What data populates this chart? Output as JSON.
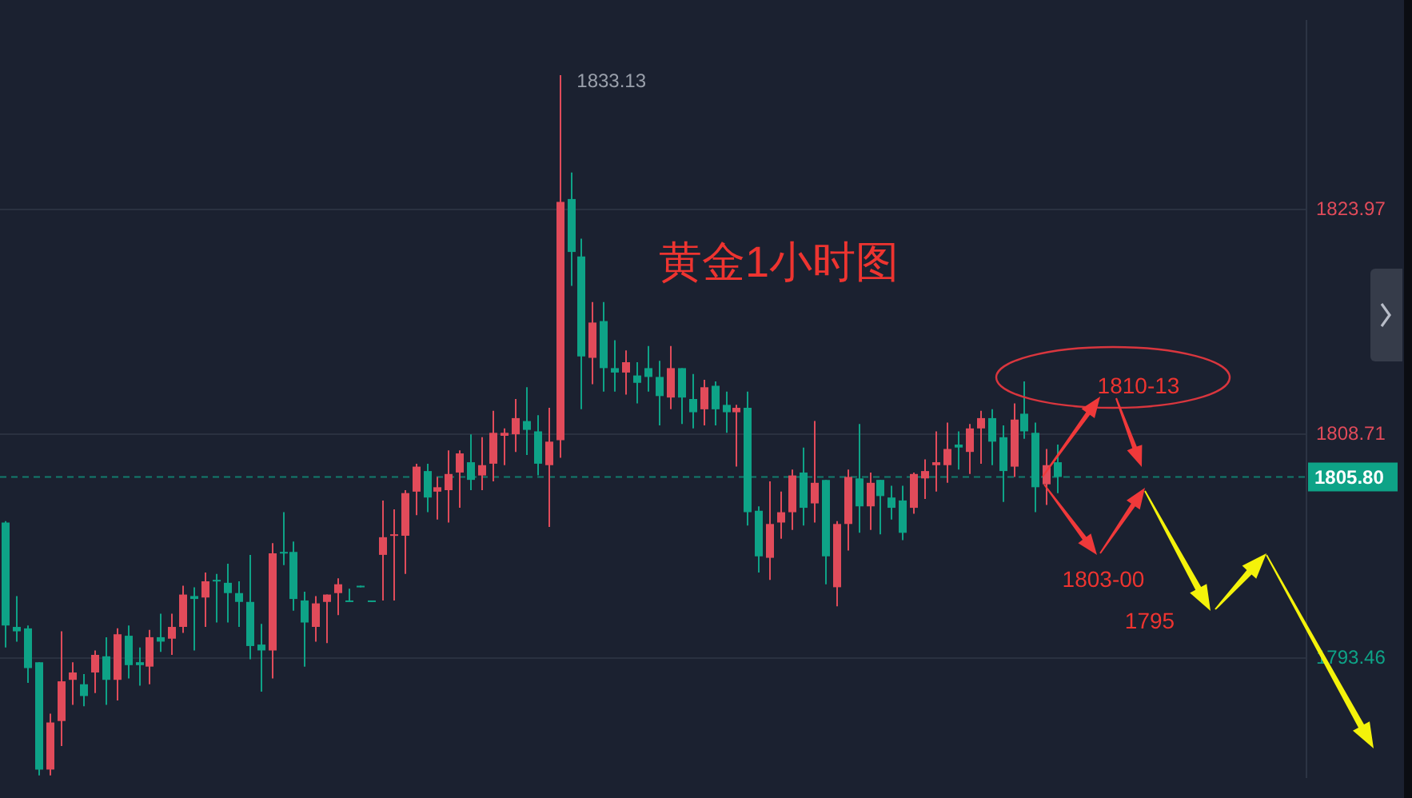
{
  "chart_data": {
    "type": "candlestick",
    "title": "黄金1小时图",
    "categories": [
      null,
      null,
      null,
      null,
      null,
      null,
      null,
      null,
      null,
      null,
      null,
      null,
      null,
      null,
      null,
      null,
      null,
      null,
      null,
      null,
      null,
      null,
      null,
      null,
      null,
      null,
      null,
      null,
      null,
      null,
      null,
      null,
      null,
      null,
      null,
      null,
      null,
      null,
      null,
      null,
      null,
      null,
      null,
      null,
      null,
      null,
      null,
      null,
      null,
      null,
      null,
      null,
      null,
      null,
      null,
      null,
      null,
      null,
      null,
      null,
      null,
      null,
      null,
      null,
      null,
      null,
      null,
      null,
      null,
      null,
      null,
      null,
      null,
      null,
      null,
      null,
      null,
      null,
      null,
      null,
      null,
      null,
      null,
      null,
      null,
      null,
      null,
      null,
      null,
      null,
      null,
      null,
      null,
      null,
      null,
      null,
      null,
      null,
      null,
      null,
      null,
      null,
      null,
      null,
      null,
      null,
      null,
      null,
      null,
      null,
      null,
      null,
      null,
      null,
      null,
      null,
      null,
      null
    ],
    "ohlc": [
      [
        1802.7,
        1802.8,
        1794.2,
        1795.7
      ],
      [
        1795.6,
        1797.7,
        1794.6,
        1795.3
      ],
      [
        1795.5,
        1795.7,
        1791.8,
        1792.8
      ],
      [
        1793.2,
        1793.2,
        1785.5,
        1785.9
      ],
      [
        1785.9,
        1789.7,
        1785.5,
        1789.1
      ],
      [
        1789.2,
        1795.3,
        1787.5,
        1791.9
      ],
      [
        1792.0,
        1793.2,
        1790.3,
        1792.5
      ],
      [
        1791.7,
        1792.4,
        1790.2,
        1790.9
      ],
      [
        1792.5,
        1794.0,
        1791.1,
        1793.7
      ],
      [
        1793.6,
        1794.9,
        1790.3,
        1792.0
      ],
      [
        1792.0,
        1795.5,
        1790.6,
        1795.1
      ],
      [
        1795.0,
        1795.7,
        1792.1,
        1793.0
      ],
      [
        1793.2,
        1794.2,
        1791.6,
        1793.0
      ],
      [
        1792.9,
        1795.4,
        1791.7,
        1794.9
      ],
      [
        1794.9,
        1796.5,
        1793.9,
        1794.6
      ],
      [
        1794.8,
        1796.5,
        1793.7,
        1795.6
      ],
      [
        1795.6,
        1798.4,
        1795.2,
        1797.8
      ],
      [
        1797.7,
        1798.3,
        1794.0,
        1797.5
      ],
      [
        1797.6,
        1799.3,
        1795.6,
        1798.7
      ],
      [
        1798.8,
        1799.2,
        1795.9,
        1798.7
      ],
      [
        1798.6,
        1799.9,
        1795.9,
        1797.9
      ],
      [
        1797.9,
        1798.7,
        1795.6,
        1797.3
      ],
      [
        1797.3,
        1800.5,
        1793.4,
        1794.3
      ],
      [
        1794.4,
        1795.8,
        1791.2,
        1794.0
      ],
      [
        1794.0,
        1801.3,
        1792.1,
        1800.6
      ],
      [
        1800.7,
        1803.4,
        1799.8,
        1800.6
      ],
      [
        1800.7,
        1801.4,
        1796.7,
        1797.5
      ],
      [
        1797.4,
        1798.0,
        1792.9,
        1795.9
      ],
      [
        1795.6,
        1797.7,
        1794.6,
        1797.2
      ],
      [
        1797.3,
        1797.8,
        1794.5,
        1797.8
      ],
      [
        1797.9,
        1798.9,
        1796.4,
        1798.5
      ],
      [
        1797.4,
        1798.2,
        1797.3,
        1797.3
      ],
      [
        1798.4,
        1798.4,
        1798.3,
        1798.3
      ],
      [
        1797.4,
        1797.4,
        1797.3,
        1797.3
      ],
      [
        1800.5,
        1804.2,
        1797.4,
        1801.7
      ],
      [
        1801.8,
        1803.6,
        1797.4,
        1801.9
      ],
      [
        1801.8,
        1804.9,
        1799.2,
        1804.7
      ],
      [
        1804.8,
        1806.7,
        1803.2,
        1806.5
      ],
      [
        1806.2,
        1806.7,
        1803.4,
        1804.4
      ],
      [
        1804.8,
        1805.8,
        1802.9,
        1805.1
      ],
      [
        1804.9,
        1807.6,
        1802.7,
        1806.0
      ],
      [
        1806.1,
        1807.6,
        1803.7,
        1807.4
      ],
      [
        1806.8,
        1808.7,
        1804.9,
        1805.6
      ],
      [
        1805.9,
        1808.5,
        1804.9,
        1806.6
      ],
      [
        1806.7,
        1810.3,
        1805.5,
        1808.8
      ],
      [
        1808.6,
        1809.1,
        1806.6,
        1808.8
      ],
      [
        1808.7,
        1811.1,
        1807.5,
        1809.8
      ],
      [
        1809.6,
        1811.9,
        1807.3,
        1809.0
      ],
      [
        1808.9,
        1810.0,
        1805.9,
        1806.7
      ],
      [
        1806.6,
        1810.5,
        1802.4,
        1808.2
      ],
      [
        1808.3,
        1833.13,
        1807.1,
        1824.5
      ],
      [
        1824.7,
        1826.5,
        1818.8,
        1821.1
      ],
      [
        1820.8,
        1822.0,
        1810.4,
        1814.0
      ],
      [
        1813.9,
        1817.7,
        1812.1,
        1816.3
      ],
      [
        1816.4,
        1817.7,
        1811.6,
        1813.2
      ],
      [
        1813.2,
        1815.1,
        1811.6,
        1812.9
      ],
      [
        1812.9,
        1814.4,
        1811.4,
        1813.6
      ],
      [
        1812.7,
        1813.6,
        1810.8,
        1812.2
      ],
      [
        1813.2,
        1814.7,
        1811.6,
        1812.6
      ],
      [
        1812.6,
        1813.7,
        1809.3,
        1811.3
      ],
      [
        1811.2,
        1814.7,
        1810.4,
        1813.2
      ],
      [
        1813.2,
        1813.2,
        1809.4,
        1811.2
      ],
      [
        1811.1,
        1812.8,
        1809.1,
        1810.2
      ],
      [
        1810.4,
        1812.4,
        1809.3,
        1811.9
      ],
      [
        1812.0,
        1812.3,
        1809.3,
        1810.4
      ],
      [
        1810.7,
        1811.6,
        1808.8,
        1810.2
      ],
      [
        1810.2,
        1810.7,
        1806.5,
        1810.5
      ],
      [
        1810.5,
        1811.6,
        1802.5,
        1803.4
      ],
      [
        1803.5,
        1803.8,
        1799.3,
        1800.4
      ],
      [
        1800.3,
        1805.5,
        1798.8,
        1802.6
      ],
      [
        1802.7,
        1804.8,
        1801.6,
        1803.4
      ],
      [
        1803.4,
        1806.3,
        1802.2,
        1805.9
      ],
      [
        1806.1,
        1807.8,
        1802.5,
        1803.7
      ],
      [
        1804.0,
        1809.6,
        1802.7,
        1805.4
      ],
      [
        1805.6,
        1805.6,
        1798.5,
        1800.4
      ],
      [
        1798.3,
        1802.8,
        1797.0,
        1802.6
      ],
      [
        1802.6,
        1806.3,
        1800.8,
        1805.8
      ],
      [
        1805.7,
        1809.4,
        1802.0,
        1803.8
      ],
      [
        1803.8,
        1806.1,
        1802.2,
        1805.4
      ],
      [
        1805.6,
        1805.6,
        1801.9,
        1804.5
      ],
      [
        1804.4,
        1805.2,
        1802.9,
        1803.7
      ],
      [
        1804.2,
        1805.2,
        1801.5,
        1802.0
      ],
      [
        1803.7,
        1806.1,
        1803.3,
        1806.0
      ],
      [
        1805.7,
        1807.0,
        1804.3,
        1806.2
      ],
      [
        1806.6,
        1808.9,
        1804.8,
        1806.8
      ],
      [
        1806.6,
        1809.5,
        1805.4,
        1807.7
      ],
      [
        1808.0,
        1808.9,
        1806.3,
        1807.8
      ],
      [
        1807.5,
        1809.4,
        1806.0,
        1809.1
      ],
      [
        1809.1,
        1810.3,
        1806.7,
        1809.8
      ],
      [
        1809.8,
        1810.4,
        1806.6,
        1808.2
      ],
      [
        1808.5,
        1809.3,
        1804.1,
        1806.2
      ],
      [
        1806.5,
        1810.8,
        1805.8,
        1809.7
      ],
      [
        1810.1,
        1812.3,
        1808.4,
        1808.9
      ],
      [
        1808.8,
        1809.5,
        1803.4,
        1805.1
      ],
      [
        1805.3,
        1807.7,
        1803.9,
        1806.6
      ],
      [
        1806.8,
        1808.0,
        1804.7,
        1805.8
      ],
      null,
      null,
      null,
      null,
      null,
      null,
      null,
      null,
      null,
      null,
      null,
      null,
      null,
      null,
      null,
      null,
      null,
      null,
      null,
      null,
      null,
      null
    ],
    "colors": [
      "#0ea387",
      "#0ea387",
      "#0ea387",
      "#0ea387",
      "#e14b5a",
      "#e14b5a",
      "#e14b5a",
      "#0ea387",
      "#e14b5a",
      "#0ea387",
      "#e14b5a",
      "#0ea387",
      "#0ea387",
      "#e14b5a",
      "#0ea387",
      "#e14b5a",
      "#e14b5a",
      "#0ea387",
      "#e14b5a",
      "#0ea387",
      "#0ea387",
      "#0ea387",
      "#0ea387",
      "#0ea387",
      "#e14b5a",
      "#0ea387",
      "#0ea387",
      "#0ea387",
      "#e14b5a",
      "#e14b5a",
      "#e14b5a",
      "#0ea387",
      "#0ea387",
      "#0ea387",
      "#e14b5a",
      "#e14b5a",
      "#e14b5a",
      "#e14b5a",
      "#0ea387",
      "#e14b5a",
      "#e14b5a",
      "#e14b5a",
      "#0ea387",
      "#e14b5a",
      "#e14b5a",
      "#e14b5a",
      "#e14b5a",
      "#0ea387",
      "#0ea387",
      "#e14b5a",
      "#e14b5a",
      "#0ea387",
      "#0ea387",
      "#e14b5a",
      "#0ea387",
      "#0ea387",
      "#e14b5a",
      "#0ea387",
      "#0ea387",
      "#0ea387",
      "#e14b5a",
      "#0ea387",
      "#0ea387",
      "#e14b5a",
      "#0ea387",
      "#0ea387",
      "#e14b5a",
      "#0ea387",
      "#0ea387",
      "#e14b5a",
      "#e14b5a",
      "#e14b5a",
      "#0ea387",
      "#e14b5a",
      "#0ea387",
      "#e14b5a",
      "#e14b5a",
      "#0ea387",
      "#e14b5a",
      "#0ea387",
      "#0ea387",
      "#0ea387",
      "#e14b5a",
      "#e14b5a",
      "#e14b5a",
      "#e14b5a",
      "#0ea387",
      "#e14b5a",
      "#e14b5a",
      "#0ea387",
      "#0ea387",
      "#e14b5a",
      "#0ea387",
      "#0ea387",
      "#e14b5a",
      "#0ea387",
      null,
      null,
      null,
      null,
      null,
      null,
      null,
      null,
      null,
      null,
      null,
      null,
      null,
      null,
      null,
      null,
      null,
      null,
      null,
      null,
      null,
      null
    ],
    "ylim": [
      1785.4,
      1836.8
    ],
    "yticks": [
      1823.97,
      1808.71,
      1793.46
    ],
    "grid": "y",
    "tick_labels": "y",
    "ref_lines": [
      {
        "axis": "y",
        "value": 1805.8,
        "label": "1805.80",
        "color": "#0ea387",
        "line_style": "dashed"
      }
    ],
    "annotations": [
      "1833.13",
      "1810-13",
      "1803-00",
      "1795"
    ]
  }
}
